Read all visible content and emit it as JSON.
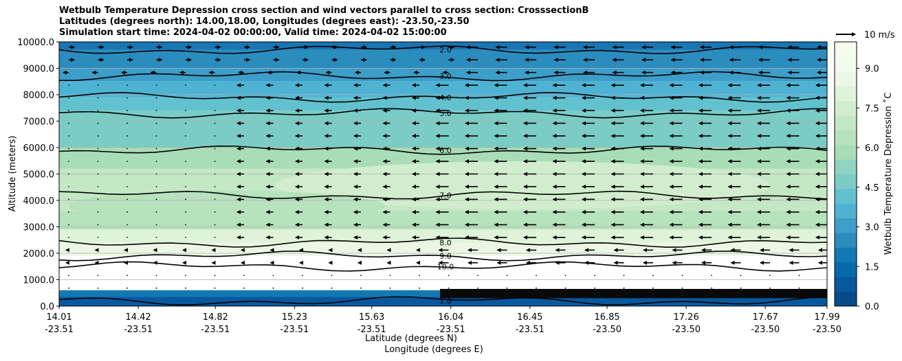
{
  "title": {
    "line1": "Wetbulb Temperature Depression cross section and wind vectors parallel to cross section: CrosssectionB",
    "line2": "Latitudes (degrees north): 14.00,18.00, Longitudes (degrees east): -23.50,-23.50",
    "line3": "Simulation start time: 2024-04-02 00:00:00, Valid time: 2024-04-02 15:00:00"
  },
  "chart_data": {
    "type": "heatmap",
    "description_kind": "filled contour cross section with line contours and wind vectors",
    "xlabel_lat": "Latitude (degrees N)",
    "xlabel_lon": "Longitude (degrees E)",
    "ylabel": "Altitude (meters)",
    "ylim": [
      0,
      10000
    ],
    "xlim": [
      14.01,
      17.99
    ],
    "x_ticks": [
      {
        "lat": "14.01",
        "lon": "-23.51"
      },
      {
        "lat": "14.42",
        "lon": "-23.51"
      },
      {
        "lat": "14.82",
        "lon": "-23.51"
      },
      {
        "lat": "15.23",
        "lon": "-23.51"
      },
      {
        "lat": "15.63",
        "lon": "-23.51"
      },
      {
        "lat": "16.04",
        "lon": "-23.51"
      },
      {
        "lat": "16.45",
        "lon": "-23.51"
      },
      {
        "lat": "16.85",
        "lon": "-23.50"
      },
      {
        "lat": "17.26",
        "lon": "-23.50"
      },
      {
        "lat": "17.67",
        "lon": "-23.50"
      },
      {
        "lat": "17.99",
        "lon": "-23.50"
      }
    ],
    "y_ticks": [
      "0.0",
      "1000.0",
      "2000.0",
      "3000.0",
      "4000.0",
      "5000.0",
      "6000.0",
      "7000.0",
      "8000.0",
      "9000.0",
      "10000.0"
    ],
    "grid": "horizontal",
    "colorbar": {
      "label": "Wetbulb Temperature Depression $^\\circ$C",
      "label_display": "Wetbulb Temperature Depression ˚C",
      "range": [
        0,
        10
      ],
      "ticks": [
        "0.0",
        "1.5",
        "3.0",
        "4.5",
        "6.0",
        "7.5",
        "9.0"
      ],
      "colors": [
        "#084a8a",
        "#08589e",
        "#0868ac",
        "#1379b5",
        "#2b8cbe",
        "#3c9ec9",
        "#4eb3d3",
        "#62c1cf",
        "#7bccc4",
        "#8ed4c0",
        "#a8ddb5",
        "#b6e2bc",
        "#c4e7c4",
        "#d1edcd",
        "#dff3d8",
        "#ebf7e4",
        "#f3fbee",
        "#f7fcf0"
      ]
    },
    "contour_levels": [
      {
        "level": "2.0",
        "altitude": 9700
      },
      {
        "level": "3.0",
        "altitude": 8700
      },
      {
        "level": "4.0",
        "altitude": 7900
      },
      {
        "level": "5.0",
        "altitude": 7300
      },
      {
        "level": "6.0",
        "altitude": 5900
      },
      {
        "level": "7.0",
        "altitude": 4200
      },
      {
        "level": "8.0",
        "altitude": 2400
      },
      {
        "level": "9.0",
        "altitude": 1900
      },
      {
        "level": "10.0",
        "altitude": 1500
      },
      {
        "level": "1.0",
        "altitude": 200
      }
    ],
    "reference_vector": "10 m/s",
    "wind_direction": "southward (leftward arrows) in mid levels"
  }
}
